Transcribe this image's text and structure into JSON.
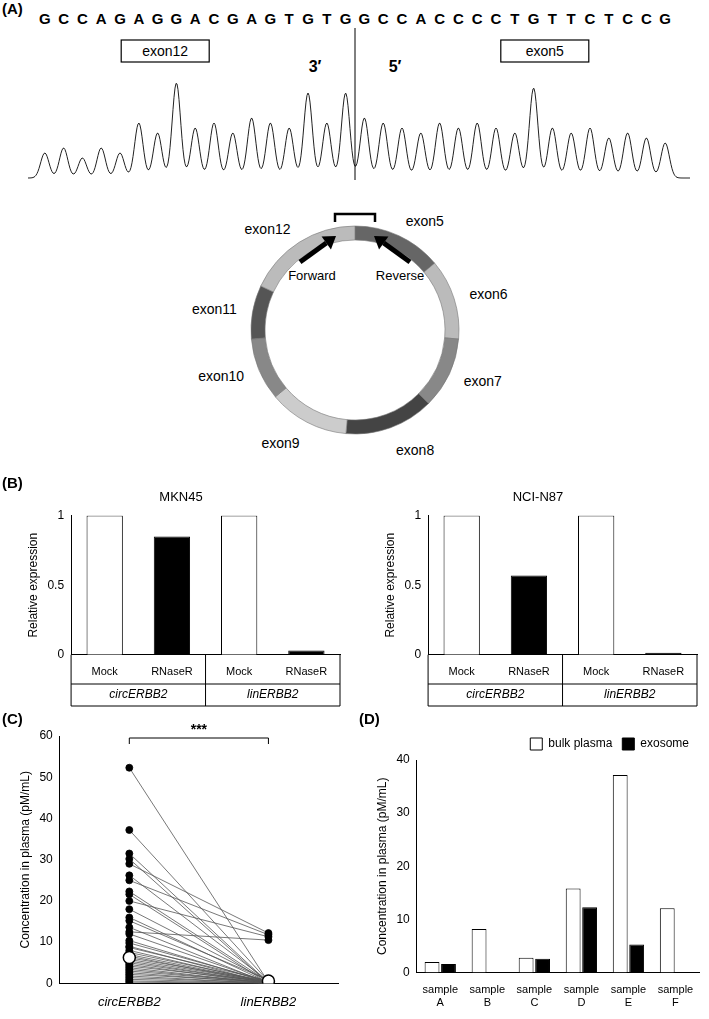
{
  "panel_a": {
    "label": "(A)",
    "sequence": [
      "GCCAGAGGACGAGTGTG",
      "GCCACCCCTGTTCTCCG"
    ],
    "peak_heights": [
      0.25,
      0.3,
      0.2,
      0.3,
      0.25,
      0.55,
      0.45,
      0.95,
      0.5,
      0.55,
      0.45,
      0.6,
      0.55,
      0.5,
      0.85,
      0.55,
      0.85,
      0.6,
      0.55,
      0.5,
      0.45,
      0.55,
      0.5,
      0.55,
      0.5,
      0.45,
      0.9,
      0.5,
      0.45,
      0.5,
      0.4,
      0.45,
      0.4,
      0.35
    ],
    "boxes": [
      "exon12",
      "exon5"
    ],
    "junction": [
      "3′",
      "5′"
    ],
    "exons": [
      "exon5",
      "exon6",
      "exon7",
      "exon8",
      "exon9",
      "exon10",
      "exon11",
      "exon12"
    ],
    "primers": [
      "Forward",
      "Reverse"
    ]
  },
  "chart_data": [
    {
      "panel": "(B)",
      "type": "bar",
      "title": "MKN45",
      "y_label": "Relative expression",
      "categories": [
        "Mock",
        "RNaseR",
        "Mock",
        "RNaseR"
      ],
      "groups": [
        "circERBB2",
        "linERBB2"
      ],
      "values": [
        1,
        0.85,
        1,
        0.03
      ],
      "colors": [
        "#ffffff",
        "#000000",
        "#ffffff",
        "#000000"
      ],
      "ylim": [
        0,
        1
      ],
      "yticks": [
        0,
        0.5,
        1
      ],
      "grid": false
    },
    {
      "type": "bar",
      "title": "NCI-N87",
      "y_label": "Relative expression",
      "categories": [
        "Mock",
        "RNaseR",
        "Mock",
        "RNaseR"
      ],
      "groups": [
        "circERBB2",
        "linERBB2"
      ],
      "values": [
        1,
        0.57,
        1,
        0.015
      ],
      "colors": [
        "#ffffff",
        "#000000",
        "#ffffff",
        "#000000"
      ],
      "ylim": [
        0,
        1
      ],
      "yticks": [
        0,
        0.5,
        1
      ],
      "grid": false
    },
    {
      "panel": "(C)",
      "type": "paired_dot",
      "y_label": "Concentration in plasma (pM/mL)",
      "categories": [
        "circERBB2",
        "linERBB2"
      ],
      "pairs": [
        [
          52.3,
          0.3
        ],
        [
          37.2,
          0.5
        ],
        [
          31.5,
          0.2
        ],
        [
          30.2,
          0
        ],
        [
          29,
          12.2
        ],
        [
          26.2,
          0.5
        ],
        [
          25,
          11.8
        ],
        [
          22.3,
          0.4
        ],
        [
          21.6,
          0
        ],
        [
          20,
          11.3
        ],
        [
          18,
          0.6
        ],
        [
          16,
          0.2
        ],
        [
          15.2,
          0.8
        ],
        [
          13.6,
          0
        ],
        [
          12.5,
          10.5
        ],
        [
          12,
          0.3
        ],
        [
          10.4,
          0.2
        ],
        [
          9.8,
          0.5
        ],
        [
          9,
          0
        ],
        [
          8.7,
          0.6
        ],
        [
          8,
          0.1
        ],
        [
          7.5,
          0.4
        ],
        [
          7,
          0.2
        ],
        [
          6.6,
          0
        ],
        [
          6.2,
          0.5
        ],
        [
          5.8,
          0.3
        ],
        [
          5.4,
          0.1
        ],
        [
          5,
          0.2
        ],
        [
          4.6,
          0
        ],
        [
          4.2,
          0.4
        ],
        [
          3.8,
          0
        ],
        [
          3.4,
          0.1
        ],
        [
          3,
          0.2
        ],
        [
          2.6,
          0
        ],
        [
          2.2,
          0.3
        ],
        [
          1.8,
          0
        ],
        [
          1.4,
          0.1
        ],
        [
          1,
          0
        ],
        [
          0.6,
          0
        ],
        [
          0.3,
          0
        ]
      ],
      "summary_values": [
        6.3,
        0.6
      ],
      "annotation": "***",
      "ylim": [
        0,
        60
      ],
      "yticks": [
        0,
        10,
        20,
        30,
        40,
        50,
        60
      ],
      "grid": false
    },
    {
      "panel": "(D)",
      "type": "bar",
      "y_label": "Concentration in plasma (pM/mL)",
      "categories": [
        "sample A",
        "sample B",
        "sample C",
        "sample D",
        "sample E",
        "sample F"
      ],
      "series": [
        {
          "name": "bulk plasma",
          "color": "#ffffff",
          "values": [
            2,
            8.2,
            2.8,
            15.8,
            37.2,
            12.1
          ]
        },
        {
          "name": "exosome",
          "color": "#000000",
          "values": [
            1.6,
            0,
            2.6,
            12.3,
            5.3,
            0
          ]
        }
      ],
      "ylim": [
        0,
        40
      ],
      "yticks": [
        0,
        10,
        20,
        30,
        40
      ],
      "legend": "top-right",
      "grid": false
    }
  ]
}
